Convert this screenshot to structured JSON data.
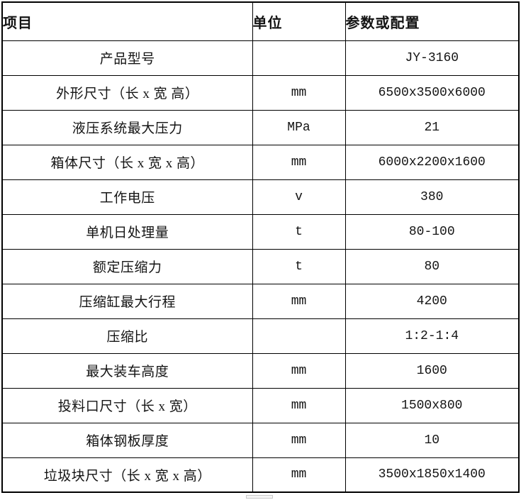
{
  "table": {
    "headers": {
      "item": "项目",
      "unit": "单位",
      "value": "参数或配置"
    },
    "rows": [
      {
        "item": "产品型号",
        "unit": "",
        "value": "JY-3160"
      },
      {
        "item": "外形尺寸（长 x 宽 高）",
        "unit": "mm",
        "value": "6500x3500x6000"
      },
      {
        "item": "液压系统最大压力",
        "unit": "MPa",
        "value": "21"
      },
      {
        "item": "箱体尺寸（长 x 宽 x 高）",
        "unit": "mm",
        "value": "6000x2200x1600"
      },
      {
        "item": "工作电压",
        "unit": "v",
        "value": "380"
      },
      {
        "item": "单机日处理量",
        "unit": "t",
        "value": "80-100"
      },
      {
        "item": "额定压缩力",
        "unit": "t",
        "value": "80"
      },
      {
        "item": "压缩缸最大行程",
        "unit": "mm",
        "value": "4200"
      },
      {
        "item": "压缩比",
        "unit": "",
        "value": "1:2-1:4"
      },
      {
        "item": "最大装车高度",
        "unit": "mm",
        "value": "1600"
      },
      {
        "item": "投料口尺寸（长 x 宽）",
        "unit": "mm",
        "value": "1500x800"
      },
      {
        "item": "箱体钢板厚度",
        "unit": "mm",
        "value": "10"
      },
      {
        "item": "垃圾块尺寸（长 x 宽 x 高）",
        "unit": "mm",
        "value": "3500x1850x1400"
      }
    ]
  },
  "colors": {
    "border": "#000000",
    "text": "#141414",
    "background": "#ffffff"
  }
}
